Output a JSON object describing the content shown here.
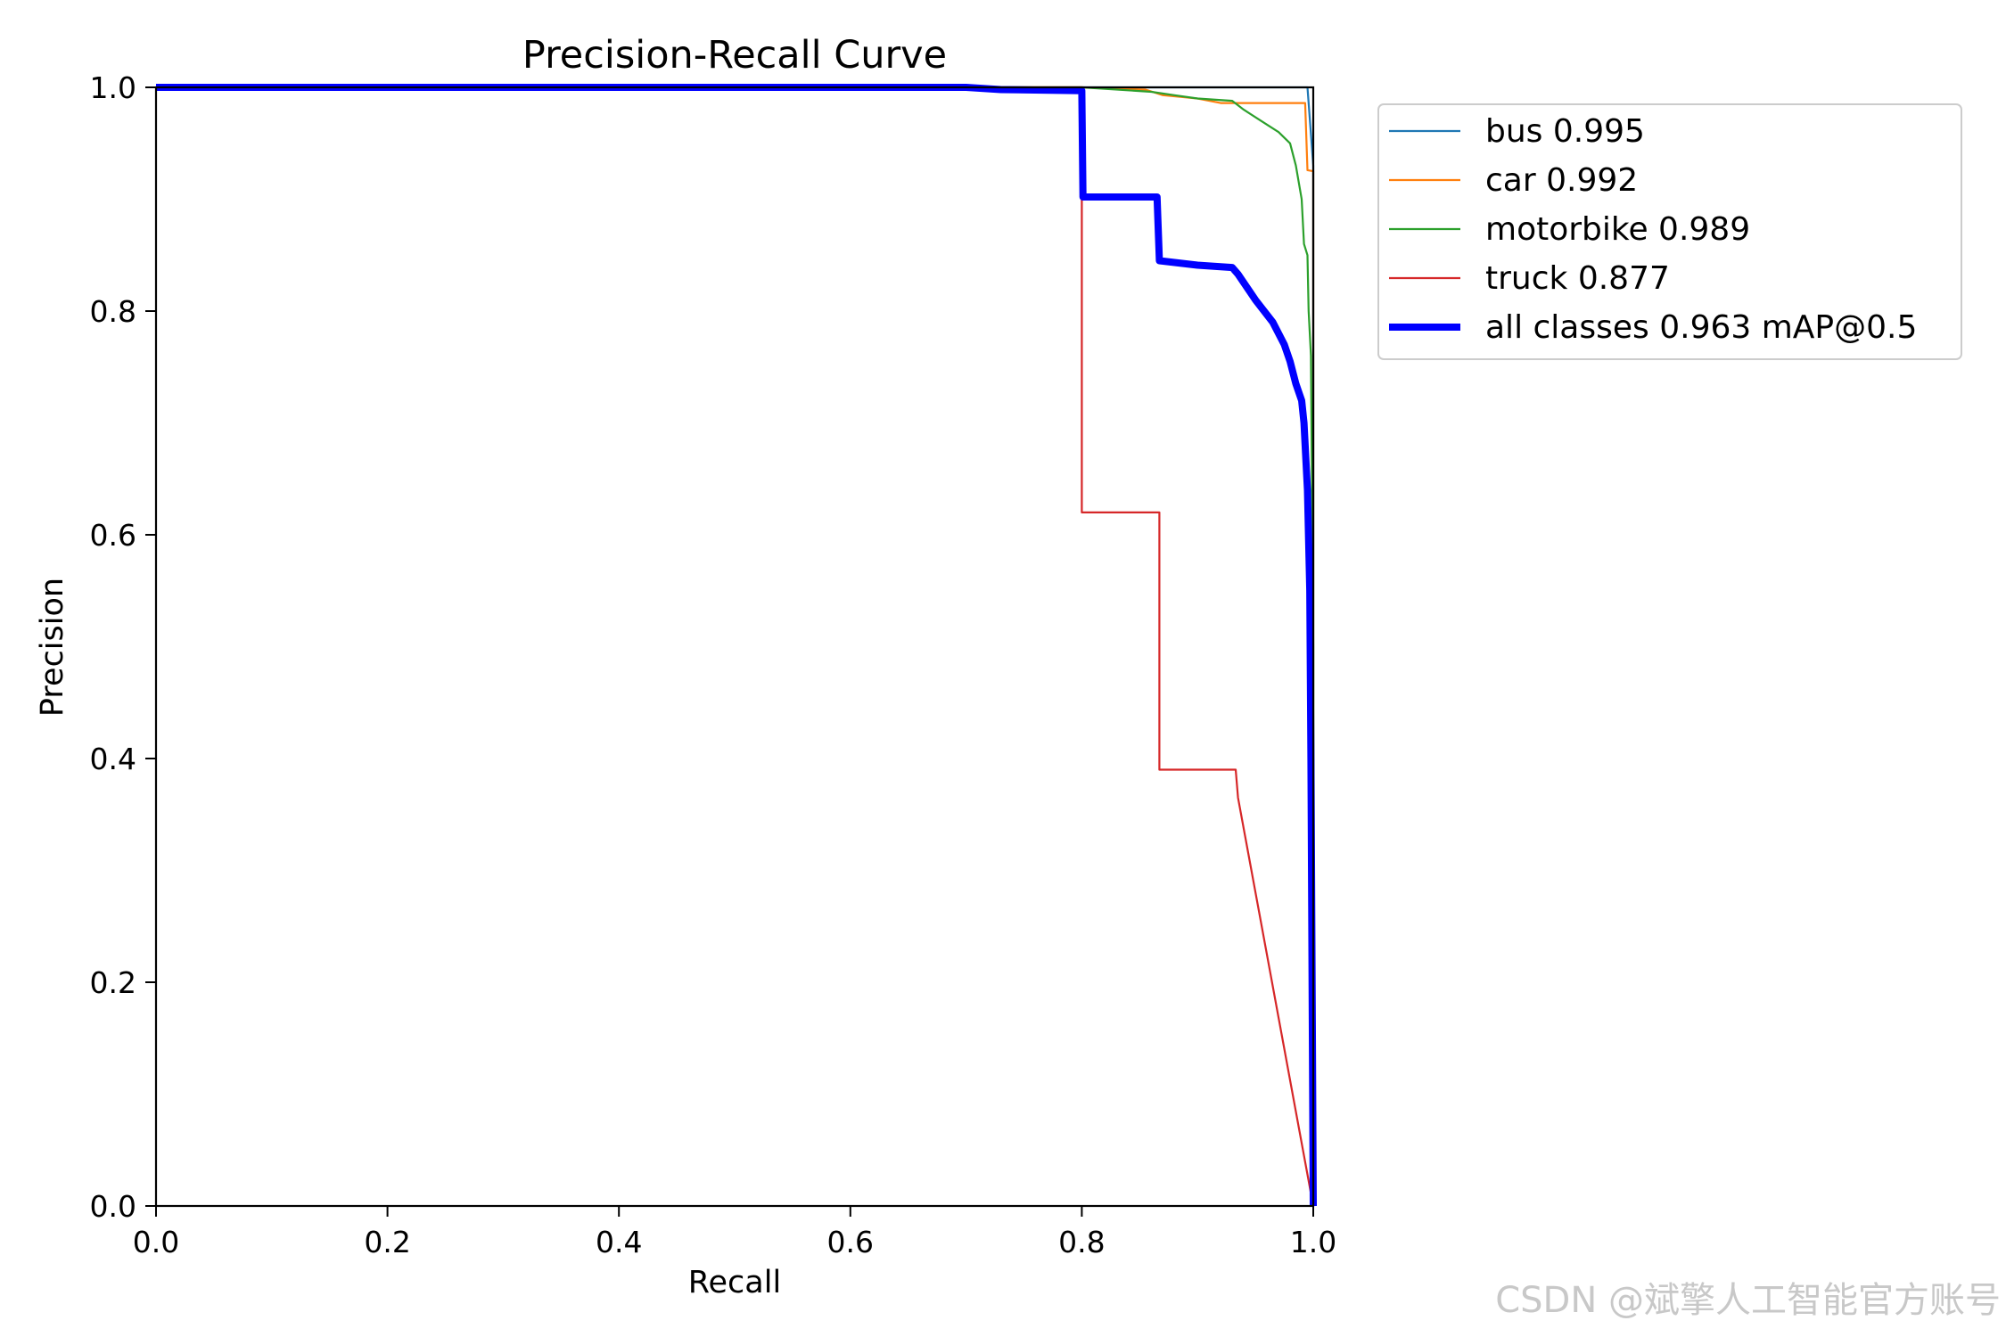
{
  "watermark": "CSDN @斌擎人工智能官方账号",
  "chart_data": {
    "type": "line",
    "title": "Precision-Recall Curve",
    "xlabel": "Recall",
    "ylabel": "Precision",
    "xlim": [
      0.0,
      1.0
    ],
    "ylim": [
      0.0,
      1.0
    ],
    "xticks": [
      "0.0",
      "0.2",
      "0.4",
      "0.6",
      "0.8",
      "1.0"
    ],
    "yticks": [
      "0.0",
      "0.2",
      "0.4",
      "0.6",
      "0.8",
      "1.0"
    ],
    "grid": false,
    "legend_position": "outside-top-right",
    "series": [
      {
        "name": "bus 0.995",
        "color": "#1f77b4",
        "points": [
          [
            0.0,
            1.0
          ],
          [
            0.99,
            1.0
          ],
          [
            0.995,
            1.0
          ],
          [
            1.0,
            0.93
          ],
          [
            1.0,
            0.0
          ]
        ]
      },
      {
        "name": "car 0.992",
        "color": "#ff7f0e",
        "points": [
          [
            0.0,
            1.0
          ],
          [
            0.8,
            1.0
          ],
          [
            0.855,
            0.998
          ],
          [
            0.87,
            0.993
          ],
          [
            0.9,
            0.99
          ],
          [
            0.92,
            0.986
          ],
          [
            0.993,
            0.986
          ],
          [
            0.995,
            0.926
          ],
          [
            1.0,
            0.925
          ],
          [
            1.0,
            0.6
          ],
          [
            1.0,
            0.0
          ]
        ]
      },
      {
        "name": "motorbike 0.989",
        "color": "#2ca02c",
        "points": [
          [
            0.0,
            1.0
          ],
          [
            0.8,
            1.0
          ],
          [
            0.86,
            0.996
          ],
          [
            0.88,
            0.993
          ],
          [
            0.9,
            0.99
          ],
          [
            0.93,
            0.988
          ],
          [
            0.94,
            0.98
          ],
          [
            0.955,
            0.97
          ],
          [
            0.97,
            0.96
          ],
          [
            0.98,
            0.95
          ],
          [
            0.985,
            0.93
          ],
          [
            0.99,
            0.9
          ],
          [
            0.992,
            0.86
          ],
          [
            0.995,
            0.85
          ],
          [
            0.996,
            0.8
          ],
          [
            0.998,
            0.76
          ],
          [
            1.0,
            0.5
          ],
          [
            1.0,
            0.0
          ]
        ]
      },
      {
        "name": "truck 0.877",
        "color": "#d62728",
        "points": [
          [
            0.0,
            1.0
          ],
          [
            0.8,
            1.0
          ],
          [
            0.8,
            0.9
          ],
          [
            0.8,
            0.62
          ],
          [
            0.867,
            0.62
          ],
          [
            0.867,
            0.39
          ],
          [
            0.933,
            0.39
          ],
          [
            0.935,
            0.365
          ],
          [
            1.0,
            0.0
          ]
        ]
      },
      {
        "name": "all classes 0.963 mAP@0.5",
        "color": "#0000ff",
        "points": [
          [
            0.0,
            1.0
          ],
          [
            0.7,
            1.0
          ],
          [
            0.73,
            0.998
          ],
          [
            0.8,
            0.997
          ],
          [
            0.801,
            0.902
          ],
          [
            0.865,
            0.902
          ],
          [
            0.867,
            0.845
          ],
          [
            0.9,
            0.841
          ],
          [
            0.93,
            0.839
          ],
          [
            0.935,
            0.833
          ],
          [
            0.95,
            0.81
          ],
          [
            0.965,
            0.79
          ],
          [
            0.975,
            0.77
          ],
          [
            0.98,
            0.755
          ],
          [
            0.985,
            0.735
          ],
          [
            0.99,
            0.72
          ],
          [
            0.992,
            0.7
          ],
          [
            0.995,
            0.64
          ],
          [
            0.997,
            0.55
          ],
          [
            0.998,
            0.4
          ],
          [
            1.0,
            0.0
          ]
        ]
      }
    ]
  }
}
